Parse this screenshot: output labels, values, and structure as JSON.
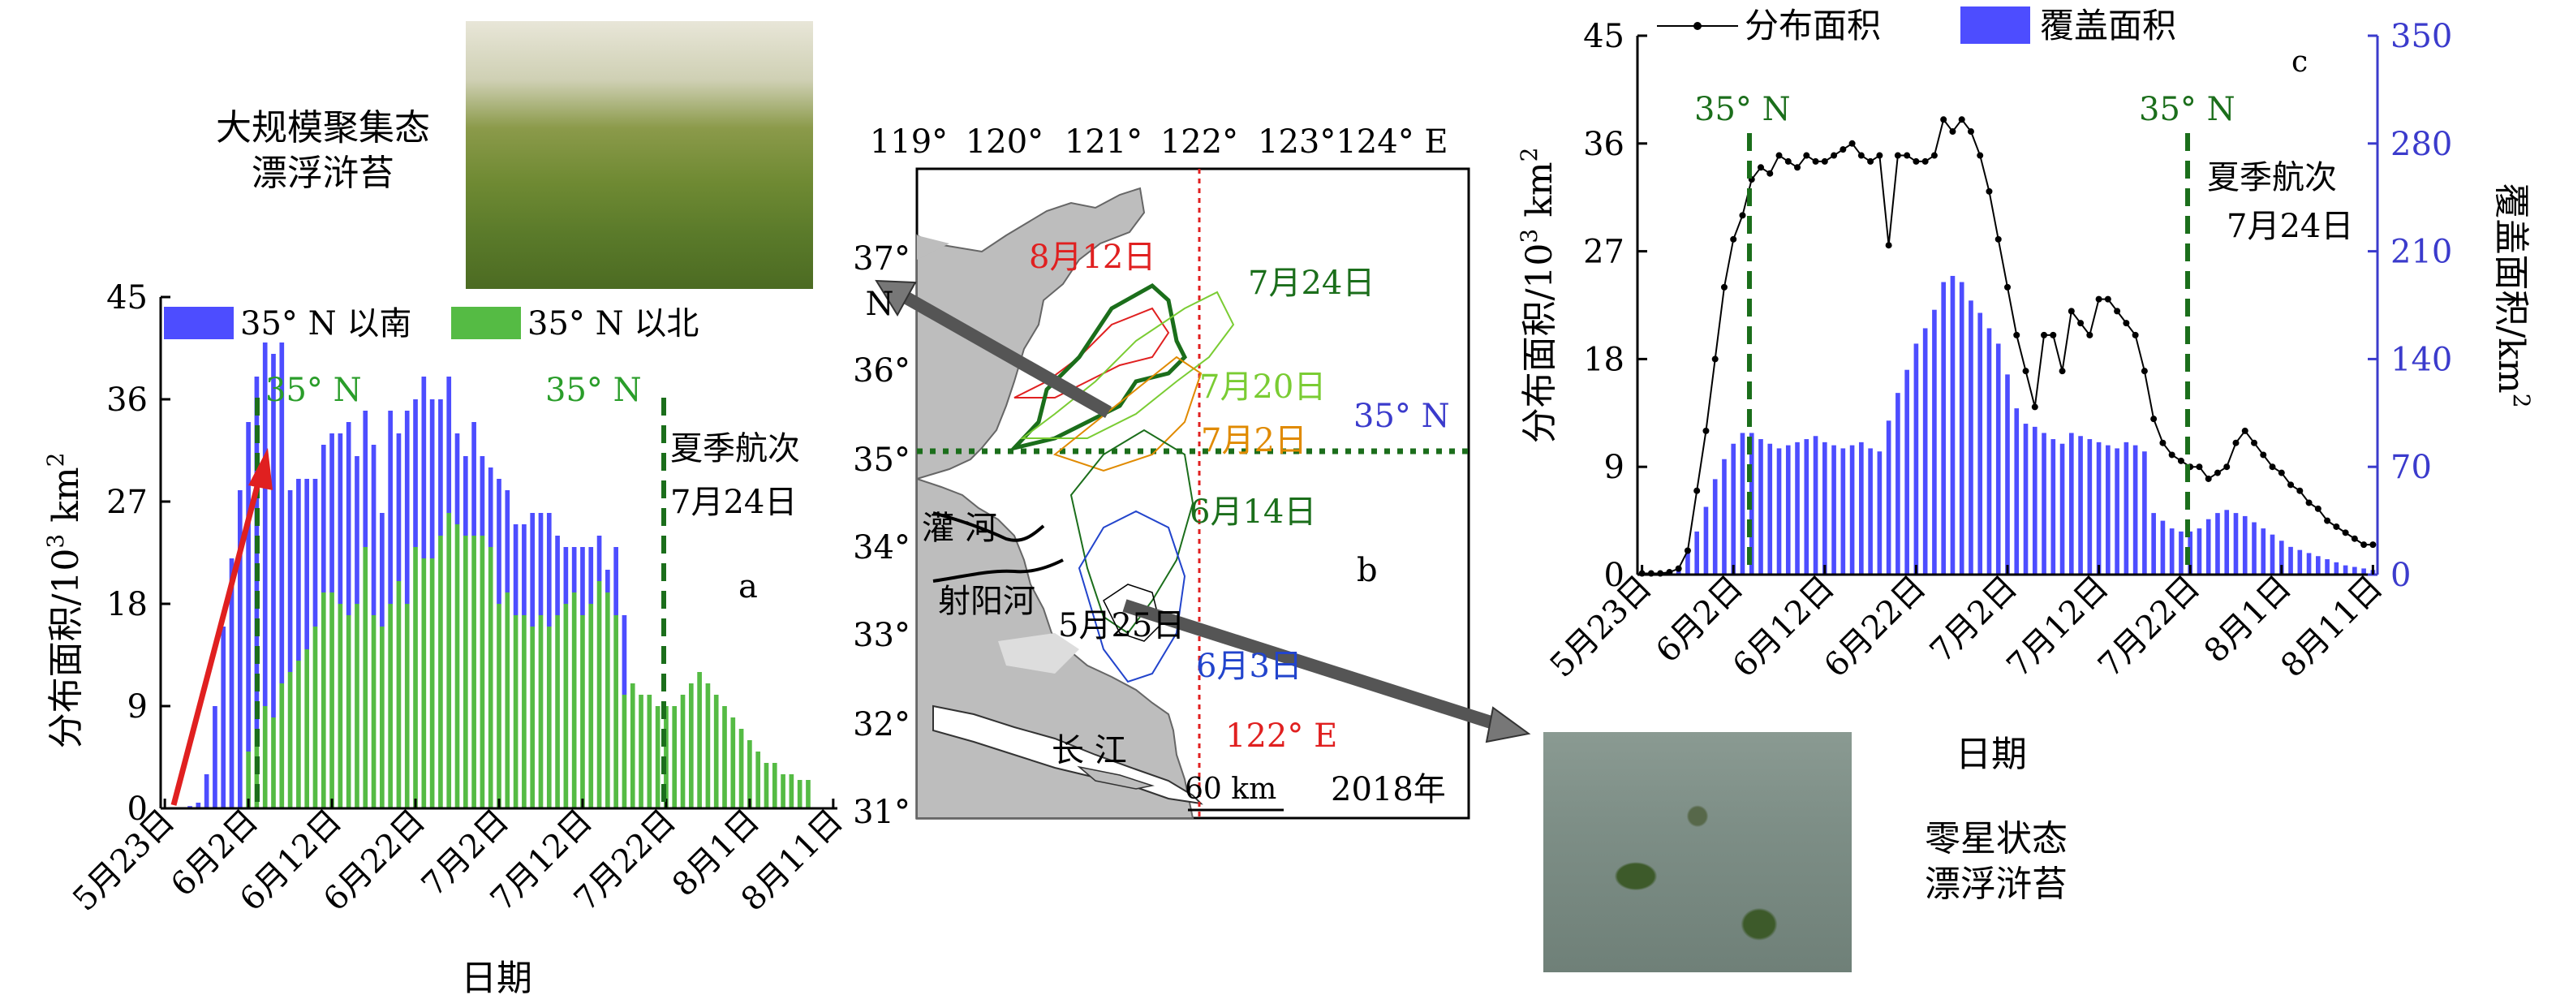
{
  "colors": {
    "south": "#4d4dff",
    "north": "#55bb44",
    "coverage": "#4d4dff",
    "dist_line": "#000000",
    "green_label": "#2a9d2a",
    "dark_green": "#1b6e1b",
    "red": "#e02020",
    "orange": "#e08a00",
    "blue": "#2244cc",
    "map_land": "#bdbdbd",
    "right_axis": "#3b3bcc"
  },
  "photos": {
    "top_caption_1": "大规模聚集态",
    "top_caption_2": "漂浮浒苔",
    "bottom_caption_1": "零星状态",
    "bottom_caption_2": "漂浮浒苔"
  },
  "panel_a": {
    "letter": "a",
    "ylabel_pre": "分布面积/10",
    "ylabel_sup": "3",
    "ylabel_post": " km",
    "ylabel_sup2": "2",
    "xlabel": "日期",
    "yticks": [
      "0",
      "9",
      "18",
      "27",
      "36",
      "45"
    ],
    "xticks": [
      "5月23日",
      "6月2日",
      "6月12日",
      "6月22日",
      "7月2日",
      "7月12日",
      "7月22日",
      "8月1日",
      "8月11日"
    ],
    "legend_south": "35° N 以南",
    "legend_north": "35° N 以北",
    "mark_label_1": "35° N",
    "mark_label_2": "35° N",
    "cruise_line1": "夏季航次",
    "cruise_line2": "7月24日"
  },
  "panel_b": {
    "letter": "b",
    "top_lon_ticks": [
      "119°",
      "120°",
      "121°",
      "122°",
      "123°124° E"
    ],
    "lat_ticks": [
      "37°",
      "36°",
      "35°",
      "34°",
      "33°",
      "32°",
      "31°"
    ],
    "n_label": "N",
    "year": "2018年",
    "scale": "60 km",
    "lon_line_label": "122° E",
    "lat_line_label": "35° N",
    "river_1": "灌 河",
    "river_2": "射阳河",
    "river_3": "长 江",
    "dates": [
      {
        "text": "8月12日",
        "color": "#e02020"
      },
      {
        "text": "7月24日",
        "color": "#1b6e1b"
      },
      {
        "text": "7月20日",
        "color": "#7acc33"
      },
      {
        "text": "7月2日",
        "color": "#e08a00"
      },
      {
        "text": "6月14日",
        "color": "#1b6e1b"
      },
      {
        "text": "5月25日",
        "color": "#000000"
      },
      {
        "text": "6月3日",
        "color": "#2244cc"
      }
    ]
  },
  "panel_c": {
    "letter": "c",
    "ylabel_pre": "分布面积/10",
    "ylabel_sup": "3",
    "ylabel_post": " km",
    "ylabel_sup2": "2",
    "ylabel_right": "覆盖面积/km",
    "ylabel_right_sup": "2",
    "xlabel": "日期",
    "yticks_left": [
      "0",
      "9",
      "18",
      "27",
      "36",
      "45"
    ],
    "yticks_right": [
      "0",
      "70",
      "140",
      "210",
      "280",
      "350"
    ],
    "xticks": [
      "5月23日",
      "6月2日",
      "6月12日",
      "6月22日",
      "7月2日",
      "7月12日",
      "7月22日",
      "8月1日",
      "8月11日"
    ],
    "legend_line": "分布面积",
    "legend_bar": "覆盖面积",
    "mark_label_1": "35° N",
    "mark_label_2": "35° N",
    "cruise_line1": "夏季航次",
    "cruise_line2": "7月24日"
  },
  "chart_data": [
    {
      "type": "bar",
      "panel": "a",
      "title": "",
      "xlabel": "日期",
      "ylabel": "分布面积/10³ km²",
      "ylim": [
        0,
        45
      ],
      "start_date": "5月23日",
      "step": "1 day",
      "categories_ticks": [
        "5月23日",
        "6月2日",
        "6月12日",
        "6月22日",
        "7月2日",
        "7月12日",
        "7月22日",
        "8月1日",
        "8月11日"
      ],
      "stacked": true,
      "series": [
        {
          "name": "35° N 以南",
          "values": [
            0,
            0,
            0,
            0.2,
            0.5,
            3,
            9,
            16,
            22,
            28,
            29,
            31,
            32,
            32,
            30,
            16,
            16,
            15,
            13,
            13,
            14,
            15,
            17,
            13,
            12,
            15,
            10,
            17,
            13,
            17,
            13,
            16,
            14,
            12,
            12,
            8,
            7,
            10,
            7,
            7,
            11,
            9,
            8,
            8,
            10,
            9,
            10,
            7,
            5,
            4,
            6,
            5,
            4,
            2,
            6,
            7,
            0,
            0,
            0,
            0,
            0,
            0,
            0,
            0,
            0,
            0,
            0,
            0,
            0,
            0,
            0,
            0,
            0,
            0,
            0,
            0,
            0,
            0,
            0,
            0,
            0
          ]
        },
        {
          "name": "35° N 以北",
          "values": [
            0,
            0,
            0,
            0,
            0,
            0,
            0,
            0,
            0,
            0,
            5,
            7,
            9,
            8,
            11,
            12,
            13,
            14,
            16,
            19,
            19,
            18,
            17,
            18,
            23,
            17,
            16,
            18,
            20,
            18,
            23,
            22,
            22,
            24,
            26,
            25,
            24,
            24,
            24,
            23,
            18,
            19,
            17,
            17,
            16,
            17,
            16,
            17,
            18,
            19,
            17,
            18,
            20,
            19,
            17,
            10,
            11,
            10,
            10,
            9,
            9,
            9,
            10,
            11,
            12,
            11,
            10,
            9,
            8,
            7,
            6,
            5,
            4,
            4,
            3,
            3,
            2.5,
            2.5,
            0,
            0,
            0
          ]
        }
      ],
      "annotations": [
        "35° N",
        "35° N",
        "夏季航次",
        "7月24日"
      ]
    },
    {
      "type": "bar+line",
      "panel": "c",
      "title": "",
      "xlabel": "日期",
      "ylabel": "分布面积/10³ km²",
      "ylabel_right": "覆盖面积/km²",
      "ylim": [
        0,
        45
      ],
      "ylim_right": [
        0,
        350
      ],
      "start_date": "5月23日",
      "step": "1 day",
      "categories_ticks": [
        "5月23日",
        "6月2日",
        "6月12日",
        "6月22日",
        "7月2日",
        "7月12日",
        "7月22日",
        "8月1日",
        "8月11日"
      ],
      "series": [
        {
          "name": "分布面积",
          "axis": "left",
          "type": "line",
          "values": [
            0.1,
            0.1,
            0.1,
            0.2,
            0.5,
            2,
            7,
            12,
            18,
            24,
            28,
            30,
            33,
            34,
            33.5,
            35,
            34.5,
            34,
            35,
            34.5,
            34.5,
            35,
            35.5,
            36,
            35,
            34.5,
            35,
            27.5,
            35,
            35,
            34.5,
            34.5,
            35,
            38,
            37,
            38,
            37,
            35,
            32,
            28,
            24,
            20,
            17,
            14,
            20,
            20,
            17,
            22,
            21,
            20,
            23,
            23,
            22,
            21,
            20,
            17,
            13,
            11,
            10,
            9.5,
            9,
            9,
            8,
            8.5,
            9,
            11,
            12,
            11,
            10,
            9,
            8.5,
            7.5,
            7,
            6,
            5.5,
            4.5,
            4,
            3.5,
            3,
            2.5,
            2.5
          ]
        },
        {
          "name": "覆盖面积",
          "axis": "right",
          "type": "bar",
          "values": [
            0.5,
            1,
            2,
            3,
            5,
            15,
            28,
            44,
            62,
            75,
            85,
            92,
            92,
            88,
            85,
            82,
            84,
            86,
            88,
            90,
            86,
            84,
            82,
            84,
            86,
            82,
            80,
            100,
            118,
            133,
            150,
            160,
            172,
            190,
            194,
            190,
            178,
            170,
            160,
            150,
            130,
            108,
            98,
            96,
            92,
            88,
            85,
            92,
            90,
            88,
            86,
            84,
            82,
            86,
            84,
            80,
            40,
            35,
            30,
            28,
            28,
            30,
            36,
            40,
            42,
            40,
            38,
            34,
            30,
            26,
            22,
            18,
            16,
            14,
            12,
            10,
            8,
            6,
            5,
            4,
            3
          ]
        }
      ],
      "annotations": [
        "35° N",
        "35° N",
        "夏季航次",
        "7月24日"
      ]
    }
  ]
}
